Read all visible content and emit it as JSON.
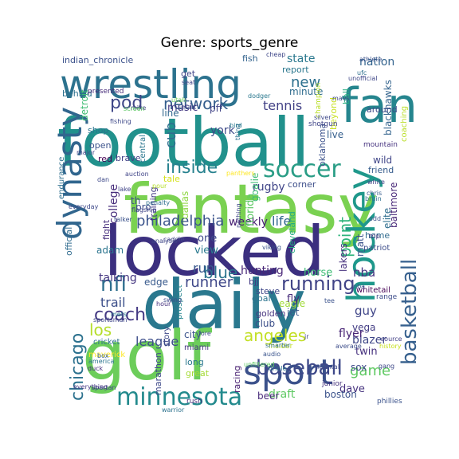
{
  "chart_data": {
    "type": "wordcloud",
    "title": "Genre: sports_genre",
    "words": [
      {
        "text": "football",
        "color": "#21918c"
      },
      {
        "text": "fantasy",
        "color": "#7ad151"
      },
      {
        "text": "locked",
        "color": "#3b2f7f"
      },
      {
        "text": "daily",
        "color": "#2a788e"
      },
      {
        "text": "golf",
        "color": "#6ccd5a"
      },
      {
        "text": "wrestling",
        "color": "#2c728e"
      },
      {
        "text": "fan",
        "color": "#25858e"
      },
      {
        "text": "dynasty",
        "color": "#31668e"
      },
      {
        "text": "hockey",
        "color": "#1f988b"
      },
      {
        "text": "soccer",
        "color": "#2a9d86"
      },
      {
        "text": "sport",
        "color": "#3b518b"
      },
      {
        "text": "basketball",
        "color": "#355f8d"
      },
      {
        "text": "minnesota",
        "color": "#238a8d"
      },
      {
        "text": "baseball",
        "color": "#3e4989"
      },
      {
        "text": "running",
        "color": "#414487"
      },
      {
        "text": "coach",
        "color": "#443983"
      },
      {
        "text": "nfl",
        "color": "#2e6f8e"
      },
      {
        "text": "los",
        "color": "#b5de2b"
      },
      {
        "text": "chicago",
        "color": "#2c718e"
      },
      {
        "text": "angeles",
        "color": "#c2df23"
      },
      {
        "text": "network",
        "color": "#355e8d"
      },
      {
        "text": "pod",
        "color": "#3f4788"
      },
      {
        "text": "inside",
        "color": "#26818e"
      },
      {
        "text": "philadelphia",
        "color": "#3a538b"
      },
      {
        "text": "runner",
        "color": "#3f4889"
      },
      {
        "text": "tennis",
        "color": "#424186"
      },
      {
        "text": "new",
        "color": "#2d708e"
      },
      {
        "text": "point",
        "color": "#2fb47c"
      },
      {
        "text": "game",
        "color": "#5ec962"
      },
      {
        "text": "blue",
        "color": "#2b758e"
      },
      {
        "text": "life",
        "color": "#31688e"
      },
      {
        "text": "weekly",
        "color": "#482173"
      },
      {
        "text": "talking",
        "color": "#453781"
      },
      {
        "text": "run",
        "color": "#38588c"
      },
      {
        "text": "nba",
        "color": "#463480"
      },
      {
        "text": "horse",
        "color": "#3dbc74"
      },
      {
        "text": "hunting",
        "color": "#482677"
      },
      {
        "text": "cub",
        "color": "#2e6e8e"
      },
      {
        "text": "college",
        "color": "#472d7b"
      },
      {
        "text": "state",
        "color": "#2a788e"
      },
      {
        "text": "nation",
        "color": "#33638d"
      },
      {
        "text": "rugby",
        "color": "#404588"
      },
      {
        "text": "blazer",
        "color": "#3f4788"
      },
      {
        "text": "eagle",
        "color": "#a0da39"
      },
      {
        "text": "league",
        "color": "#3d4e8a"
      },
      {
        "text": "city",
        "color": "#3a548c"
      },
      {
        "text": "vega",
        "color": "#433d84"
      },
      {
        "text": "twin",
        "color": "#46307e"
      },
      {
        "text": "sox",
        "color": "#3e4a89"
      },
      {
        "text": "dave",
        "color": "#46327e"
      },
      {
        "text": "guy",
        "color": "#404688"
      },
      {
        "text": "draft",
        "color": "#5ec962"
      },
      {
        "text": "boston",
        "color": "#3b528b"
      },
      {
        "text": "beer",
        "color": "#472a7a"
      },
      {
        "text": "jet",
        "color": "#38598c"
      },
      {
        "text": "flyer",
        "color": "#482475"
      },
      {
        "text": "golden",
        "color": "#46337f"
      },
      {
        "text": "club",
        "color": "#3c4f8a"
      },
      {
        "text": "fly",
        "color": "#472c7a"
      },
      {
        "text": "steve",
        "color": "#3f4788"
      },
      {
        "text": "bjj",
        "color": "#443b84"
      },
      {
        "text": "goal",
        "color": "#2c738e"
      },
      {
        "text": "trail",
        "color": "#3c4f8a"
      },
      {
        "text": "edge",
        "color": "#37598c"
      },
      {
        "text": "view",
        "color": "#29798e"
      },
      {
        "text": "one",
        "color": "#3f4889"
      },
      {
        "text": "adam",
        "color": "#2b748e"
      },
      {
        "text": "pro",
        "color": "#3d4d8a"
      },
      {
        "text": "th",
        "color": "#3e4a89"
      },
      {
        "text": "fight",
        "color": "#472f7d"
      },
      {
        "text": "red",
        "color": "#440154"
      },
      {
        "text": "open",
        "color": "#3b528b"
      },
      {
        "text": "shop",
        "color": "#2b758e"
      },
      {
        "text": "music",
        "color": "#443a83"
      },
      {
        "text": "line",
        "color": "#31678e"
      },
      {
        "text": "pff",
        "color": "#414487"
      },
      {
        "text": "york",
        "color": "#3e4a89"
      },
      {
        "text": "minute",
        "color": "#2f6c8e"
      },
      {
        "text": "report",
        "color": "#2a778e"
      },
      {
        "text": "get",
        "color": "#404588"
      },
      {
        "text": "fish",
        "color": "#33638d"
      },
      {
        "text": "indian_chronicle",
        "color": "#3b518b"
      },
      {
        "text": "behind",
        "color": "#2d708e"
      },
      {
        "text": "detroit",
        "color": "#3fbc73"
      },
      {
        "text": "presented",
        "color": "#472c7a"
      },
      {
        "text": "oklahoma",
        "color": "#3b518b"
      },
      {
        "text": "live",
        "color": "#355f8d"
      },
      {
        "text": "wild",
        "color": "#404688"
      },
      {
        "text": "friend",
        "color": "#365c8d"
      },
      {
        "text": "corner",
        "color": "#3d4e8a"
      },
      {
        "text": "cleveland",
        "color": "#25ac82"
      },
      {
        "text": "lakers",
        "color": "#46307e"
      },
      {
        "text": "matt",
        "color": "#3b528b"
      },
      {
        "text": "baltimore",
        "color": "#482878"
      },
      {
        "text": "elite",
        "color": "#2e6e8e"
      },
      {
        "text": "home",
        "color": "#2f6b8e"
      },
      {
        "text": "patriot",
        "color": "#3d4d8a"
      },
      {
        "text": "whitetail",
        "color": "#440154"
      },
      {
        "text": "range",
        "color": "#3d4d8a"
      },
      {
        "text": "blackhawks",
        "color": "#33638d"
      },
      {
        "text": "coaching",
        "color": "#bade28"
      },
      {
        "text": "around",
        "color": "#3e4989"
      },
      {
        "text": "ball",
        "color": "#27ad81"
      },
      {
        "text": "beyond",
        "color": "#c8e020"
      },
      {
        "text": "mountain",
        "color": "#46337f"
      },
      {
        "text": "central",
        "color": "#2a768e"
      },
      {
        "text": "training",
        "color": "#443983"
      },
      {
        "text": "dallas",
        "color": "#8fd744"
      },
      {
        "text": "florida",
        "color": "#5cc863"
      },
      {
        "text": "goalie",
        "color": "#3dbc74"
      },
      {
        "text": "official",
        "color": "#2f6b8e"
      },
      {
        "text": "endurance",
        "color": "#2e6f8e"
      },
      {
        "text": "brave",
        "color": "#424086"
      },
      {
        "text": "tale",
        "color": "#d5e21a"
      },
      {
        "text": "prospect",
        "color": "#25848e"
      },
      {
        "text": "marathon",
        "color": "#3e4989"
      },
      {
        "text": "long",
        "color": "#2a788e"
      },
      {
        "text": "great",
        "color": "#a5db36"
      },
      {
        "text": "miami",
        "color": "#453781"
      },
      {
        "text": "cricket",
        "color": "#2e6f8e"
      },
      {
        "text": "maverick",
        "color": "#fde725"
      },
      {
        "text": "story",
        "color": "#3e4989"
      },
      {
        "text": "racing",
        "color": "#482071"
      },
      {
        "text": "rush",
        "color": "#472d7b"
      },
      {
        "text": "insider",
        "color": "#c0df25"
      },
      {
        "text": "junior",
        "color": "#46327e"
      },
      {
        "text": "mental",
        "color": "#3e4a89"
      },
      {
        "text": "history",
        "color": "#c8e020"
      },
      {
        "text": "source",
        "color": "#424086"
      },
      {
        "text": "phillies",
        "color": "#3b528b"
      },
      {
        "text": "oriole",
        "color": "#2d708e"
      },
      {
        "text": "audio",
        "color": "#3a548c"
      },
      {
        "text": "warrior",
        "color": "#2c728e"
      },
      {
        "text": "average",
        "color": "#3d4d8a"
      },
      {
        "text": "smarter",
        "color": "#2f6c8e"
      },
      {
        "text": "spartan",
        "color": "#404588"
      },
      {
        "text": "everything",
        "color": "#443983"
      },
      {
        "text": "duck",
        "color": "#46307e"
      },
      {
        "text": "box",
        "color": "#355f8d"
      },
      {
        "text": "america",
        "color": "#2b748e"
      },
      {
        "text": "sportsman",
        "color": "#3f4788"
      },
      {
        "text": "mets",
        "color": "#2a788e"
      },
      {
        "text": "swing",
        "color": "#3e4989"
      },
      {
        "text": "hour",
        "color": "#46317e"
      },
      {
        "text": "viking",
        "color": "#3b528b"
      },
      {
        "text": "bruin",
        "color": "#2e6f8e"
      },
      {
        "text": "chris",
        "color": "#365c8d"
      },
      {
        "text": "white",
        "color": "#404588"
      },
      {
        "text": "trip",
        "color": "#46337f"
      },
      {
        "text": "odd",
        "color": "#3b528b"
      },
      {
        "text": "panthers",
        "color": "#fde725"
      },
      {
        "text": "thing",
        "color": "#2e6f8e"
      },
      {
        "text": "shotgun",
        "color": "#404588"
      },
      {
        "text": "champion",
        "color": "#bade28"
      },
      {
        "text": "silver",
        "color": "#3e4989"
      },
      {
        "text": "bird",
        "color": "#29798e"
      },
      {
        "text": "dodger",
        "color": "#2a788e"
      },
      {
        "text": "utah",
        "color": "#6ccd5a"
      },
      {
        "text": "smart",
        "color": "#3d4e8a"
      },
      {
        "text": "mike",
        "color": "#433e85"
      },
      {
        "text": "screen",
        "color": "#5cc863"
      },
      {
        "text": "fishing",
        "color": "#3e4989"
      },
      {
        "text": "major",
        "color": "#404588"
      },
      {
        "text": "unofficial",
        "color": "#3f4788"
      },
      {
        "text": "ufc",
        "color": "#2e6f8e"
      },
      {
        "text": "athlete",
        "color": "#3b528b"
      },
      {
        "text": "seat",
        "color": "#404588"
      },
      {
        "text": "cheap",
        "color": "#3f4788"
      },
      {
        "text": "mavs",
        "color": "#3e4989"
      },
      {
        "text": "auction",
        "color": "#404588"
      },
      {
        "text": "pour",
        "color": "#b5de2b"
      },
      {
        "text": "penalty",
        "color": "#2e6f8e"
      },
      {
        "text": "everyday",
        "color": "#3e4989"
      },
      {
        "text": "flagship",
        "color": "#404588"
      },
      {
        "text": "talker",
        "color": "#3b528b"
      },
      {
        "text": "caddie",
        "color": "#404588"
      },
      {
        "text": "analysis",
        "color": "#3f4788"
      },
      {
        "text": "fore",
        "color": "#3e4989"
      },
      {
        "text": "unfiltered",
        "color": "#5ec962"
      },
      {
        "text": "tee",
        "color": "#3b528b"
      },
      {
        "text": "jr",
        "color": "#404588"
      },
      {
        "text": "gang",
        "color": "#3e4989"
      },
      {
        "text": "nothing",
        "color": "#3f4788"
      },
      {
        "text": "dan",
        "color": "#3e4989"
      },
      {
        "text": "lake",
        "color": "#404588"
      },
      {
        "text": "nba",
        "color": "#3b528b"
      }
    ]
  }
}
